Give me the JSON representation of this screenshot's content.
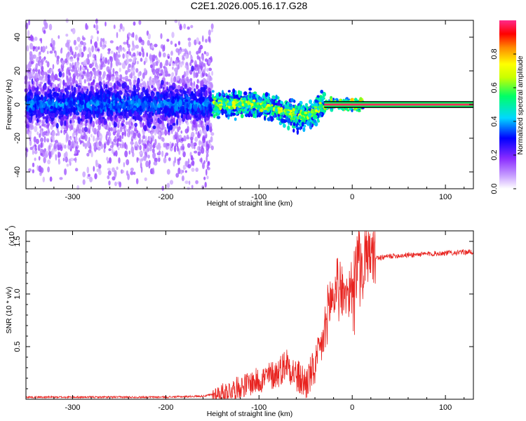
{
  "chart_data": [
    {
      "id": "spectrogram",
      "type": "heatmap",
      "title": "C2E1.2026.005.16.17.G28",
      "xlabel": "Height of straight line (km)",
      "ylabel": "Frequency (Hz)",
      "xlim": [
        -350,
        130
      ],
      "ylim": [
        -50,
        50
      ],
      "xticks": [
        -300,
        -200,
        -100,
        0,
        100
      ],
      "xtick_labels": [
        "-300",
        "-200",
        "-100",
        "0",
        "100"
      ],
      "yticks": [
        -40,
        -20,
        0,
        20,
        40
      ],
      "ytick_labels": [
        "-40",
        "-20",
        "0",
        "20",
        "40"
      ],
      "colorbar": {
        "label": "Normalized spectral amplitude",
        "range": [
          0,
          1
        ],
        "ticks": [
          0.0,
          0.2,
          0.4,
          0.6,
          0.8
        ],
        "tick_labels": [
          "0.0",
          "0.2",
          "0.4",
          "0.6",
          "0.8"
        ],
        "colormap": [
          "#ffffff",
          "#9b30ff",
          "#0000ff",
          "#00e5ff",
          "#00ff66",
          "#ffff00",
          "#ff8800",
          "#ff0000",
          "#ff2a8a"
        ]
      },
      "ridge_line": {
        "description_points_km_hz": [
          [
            -350,
            0
          ],
          [
            -150,
            0
          ],
          [
            -120,
            0.5
          ],
          [
            -90,
            -1
          ],
          [
            -70,
            -5
          ],
          [
            -55,
            -7
          ],
          [
            -45,
            -6
          ],
          [
            -35,
            -2
          ],
          [
            -30,
            0
          ],
          [
            0,
            0
          ],
          [
            130,
            0
          ]
        ],
        "scatter_extent_by_height": [
          {
            "x_from": -350,
            "x_to": -150,
            "spread_hz": 50,
            "core_hz": 8
          },
          {
            "x_from": -150,
            "x_to": -30,
            "spread_hz": 8,
            "core_hz": 5
          },
          {
            "x_from": -30,
            "x_to": 130,
            "spread_hz": 2,
            "core_hz": 1.5
          }
        ]
      }
    },
    {
      "id": "snr",
      "type": "line",
      "title": "",
      "xlabel": "Height of straight line (km)",
      "ylabel": "SNR (10 * v/v)",
      "yscale_label": "(x10",
      "yscale_exponent": "4",
      "xlim": [
        -350,
        130
      ],
      "ylim": [
        0,
        1.6
      ],
      "xticks": [
        -300,
        -200,
        -100,
        0,
        100
      ],
      "xtick_labels": [
        "-300",
        "-200",
        "-100",
        "0",
        "100"
      ],
      "yticks": [
        0.5,
        1.0,
        1.5
      ],
      "ytick_labels": [
        "0.5",
        "1.0",
        "1.5"
      ],
      "series": [
        {
          "name": "SNR",
          "color": "#e8231f",
          "envelope_x": [
            -350,
            -200,
            -160,
            -140,
            -120,
            -100,
            -80,
            -70,
            -60,
            -50,
            -40,
            -30,
            -25,
            -20,
            -15,
            -10,
            -5,
            0,
            5,
            10,
            15,
            20,
            25,
            30,
            40,
            60,
            80,
            100,
            130
          ],
          "envelope_y": [
            0.02,
            0.02,
            0.03,
            0.06,
            0.12,
            0.18,
            0.25,
            0.35,
            0.22,
            0.15,
            0.3,
            0.6,
            0.9,
            1.0,
            1.1,
            1.05,
            1.0,
            1.1,
            1.2,
            1.3,
            1.34,
            1.35,
            1.35,
            1.34,
            1.36,
            1.37,
            1.38,
            1.39,
            1.4
          ]
        }
      ]
    }
  ]
}
